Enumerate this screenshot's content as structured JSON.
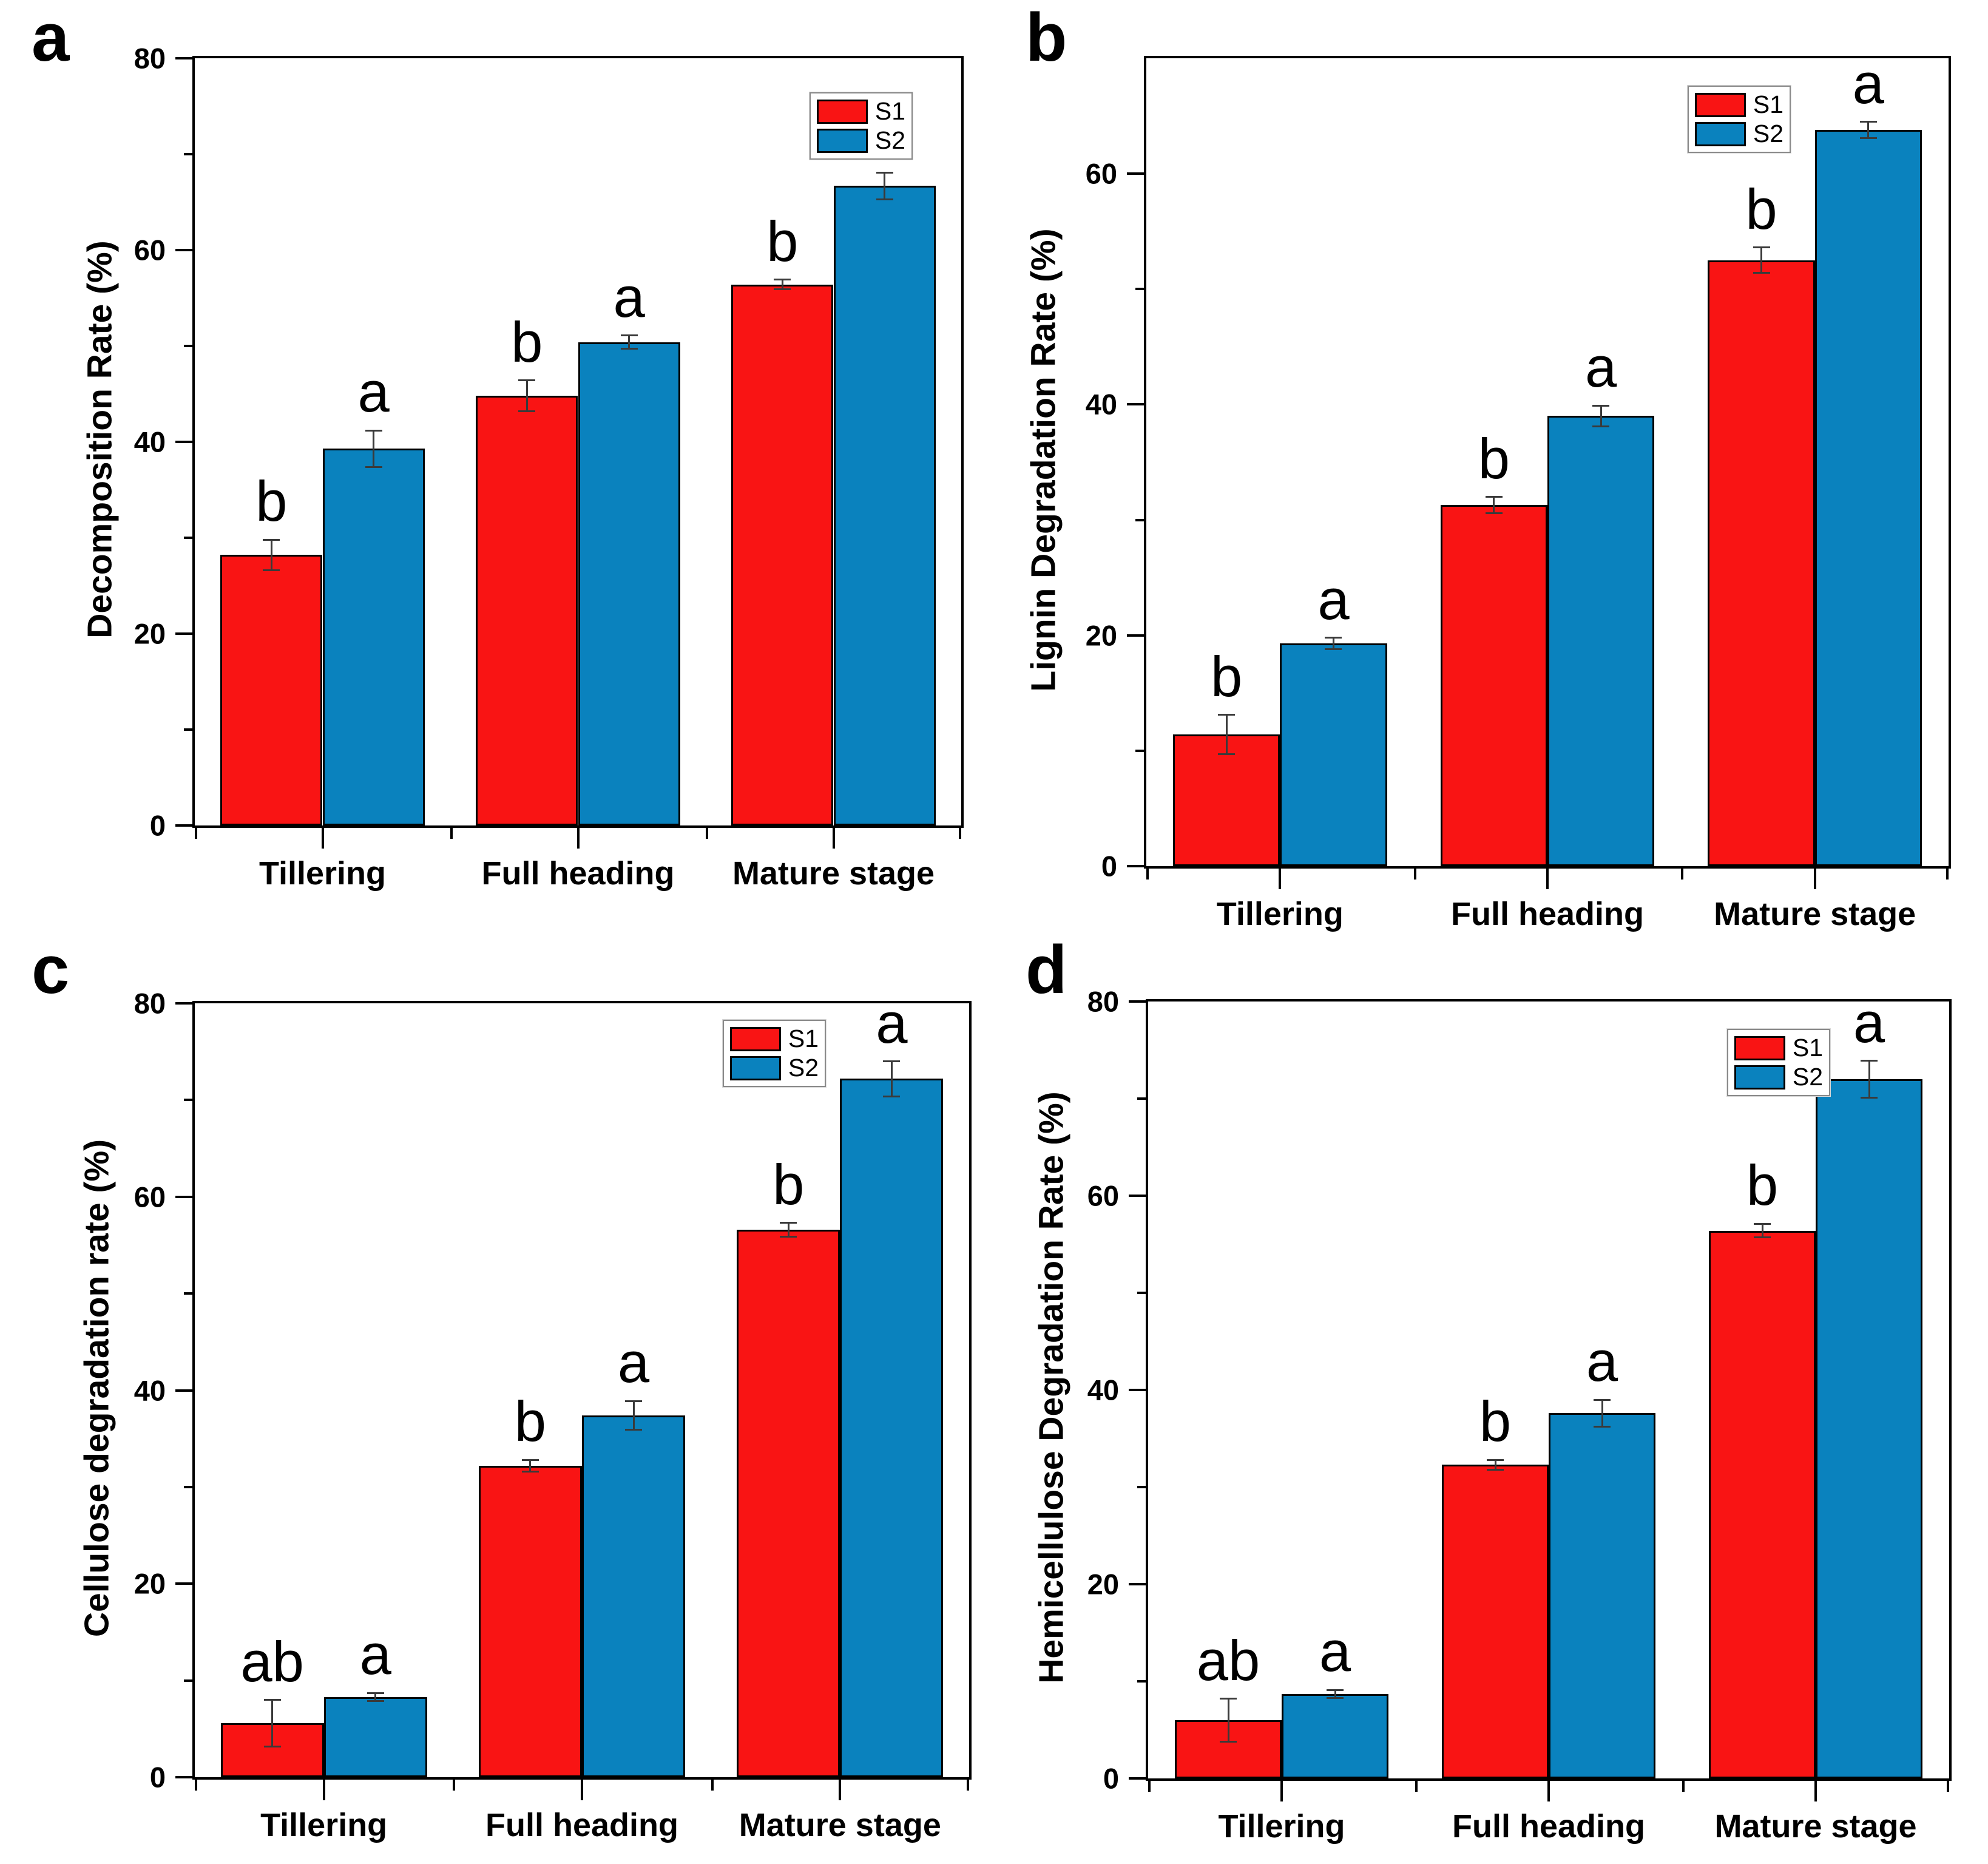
{
  "figure_background": "#ffffff",
  "colors": {
    "s1": "#F91414",
    "s2": "#0A82BE",
    "error_bar": "#3a3a3a",
    "axis": "#000000"
  },
  "chart_data": [
    {
      "type": "bar",
      "letter": "a",
      "ylabel": "Decomposition Rate (%)",
      "xlabel": "",
      "categories": [
        "Tillering",
        "Full heading",
        "Mature stage"
      ],
      "ylim": [
        0,
        80
      ],
      "yticks_major": [
        0,
        20,
        40,
        60,
        80
      ],
      "yticks_minor": [
        10,
        30,
        50,
        70
      ],
      "grid": false,
      "legend_position": "top-right-inside",
      "legend_labels": [
        "S1",
        "S2"
      ],
      "series": [
        {
          "name": "S1",
          "color": "#F91414",
          "values": [
            28.2,
            44.8,
            56.4
          ],
          "errors": [
            1.6,
            1.6,
            0.5
          ],
          "sig_letters": [
            "b",
            "b",
            "b"
          ]
        },
        {
          "name": "S2",
          "color": "#0A82BE",
          "values": [
            39.3,
            50.4,
            66.7
          ],
          "errors": [
            1.9,
            0.7,
            1.4
          ],
          "sig_letters": [
            "a",
            "a",
            "a"
          ]
        }
      ]
    },
    {
      "type": "bar",
      "letter": "b",
      "ylabel": "Lignin Degradation Rate (%)",
      "xlabel": "",
      "categories": [
        "Tillering",
        "Full heading",
        "Mature stage"
      ],
      "ylim": [
        0,
        70
      ],
      "yticks_major": [
        0,
        20,
        40,
        60
      ],
      "yticks_minor": [
        10,
        30,
        50
      ],
      "grid": false,
      "legend_position": "top-right-inside",
      "legend_labels": [
        "S1",
        "S2"
      ],
      "series": [
        {
          "name": "S1",
          "color": "#F91414",
          "values": [
            11.4,
            31.3,
            52.5
          ],
          "errors": [
            1.7,
            0.7,
            1.1
          ],
          "sig_letters": [
            "b",
            "b",
            "b"
          ]
        },
        {
          "name": "S2",
          "color": "#0A82BE",
          "values": [
            19.3,
            39.0,
            63.8
          ],
          "errors": [
            0.5,
            0.9,
            0.7
          ],
          "sig_letters": [
            "a",
            "a",
            "a"
          ]
        }
      ]
    },
    {
      "type": "bar",
      "letter": "c",
      "ylabel": "Cellulose degradation rate (%)",
      "xlabel": "",
      "categories": [
        "Tillering",
        "Full heading",
        "Mature stage"
      ],
      "ylim": [
        0,
        80
      ],
      "yticks_major": [
        0,
        20,
        40,
        60,
        80
      ],
      "yticks_minor": [
        10,
        30,
        50,
        70
      ],
      "grid": false,
      "legend_position": "top-right-inside",
      "legend_labels": [
        "S1",
        "S2"
      ],
      "series": [
        {
          "name": "S1",
          "color": "#F91414",
          "values": [
            5.6,
            32.2,
            56.6
          ],
          "errors": [
            2.4,
            0.6,
            0.7
          ],
          "sig_letters": [
            "ab",
            "b",
            "b"
          ]
        },
        {
          "name": "S2",
          "color": "#0A82BE",
          "values": [
            8.3,
            37.4,
            72.2
          ],
          "errors": [
            0.4,
            1.5,
            1.8
          ],
          "sig_letters": [
            "a",
            "a",
            "a"
          ]
        }
      ]
    },
    {
      "type": "bar",
      "letter": "d",
      "ylabel": "Hemicellulose Degradation Rate (%)",
      "xlabel": "",
      "categories": [
        "Tillering",
        "Full heading",
        "Mature stage"
      ],
      "ylim": [
        0,
        80
      ],
      "yticks_major": [
        0,
        20,
        40,
        60,
        80
      ],
      "yticks_minor": [
        10,
        30,
        50,
        70
      ],
      "grid": false,
      "legend_position": "top-right-inside",
      "legend_labels": [
        "S1",
        "S2"
      ],
      "series": [
        {
          "name": "S1",
          "color": "#F91414",
          "values": [
            6.0,
            32.3,
            56.4
          ],
          "errors": [
            2.2,
            0.5,
            0.7
          ],
          "sig_letters": [
            "ab",
            "b",
            "b"
          ]
        },
        {
          "name": "S2",
          "color": "#0A82BE",
          "values": [
            8.7,
            37.6,
            72.0
          ],
          "errors": [
            0.4,
            1.4,
            1.9
          ],
          "sig_letters": [
            "a",
            "a",
            "a"
          ]
        }
      ]
    }
  ]
}
